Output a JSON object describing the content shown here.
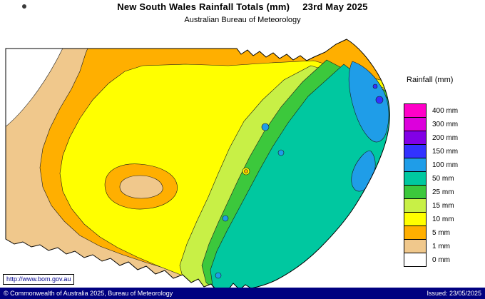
{
  "header": {
    "title": "New South Wales Rainfall Totals (mm)",
    "date": "23rd May 2025",
    "subtitle": "Australian Bureau of Meteorology"
  },
  "legend": {
    "title": "Rainfall (mm)",
    "entries": [
      {
        "label": "400 mm",
        "color": "#ff00c8"
      },
      {
        "label": "300 mm",
        "color": "#dc00dc"
      },
      {
        "label": "200 mm",
        "color": "#8200e6"
      },
      {
        "label": "150 mm",
        "color": "#3232ff"
      },
      {
        "label": "100 mm",
        "color": "#1f9de8"
      },
      {
        "label": "50 mm",
        "color": "#00c8a0"
      },
      {
        "label": "25 mm",
        "color": "#3cc83c"
      },
      {
        "label": "15 mm",
        "color": "#c8f046"
      },
      {
        "label": "10 mm",
        "color": "#ffff00"
      },
      {
        "label": "5 mm",
        "color": "#ffaf00"
      },
      {
        "label": "1 mm",
        "color": "#f0c88c"
      },
      {
        "label": "0 mm",
        "color": "#ffffff"
      }
    ]
  },
  "footer": {
    "url": "http://www.bom.gov.au",
    "copyright": "© Commonwealth of Australia 2025, Bureau of Meteorology",
    "issued": "Issued: 23/05/2025"
  }
}
